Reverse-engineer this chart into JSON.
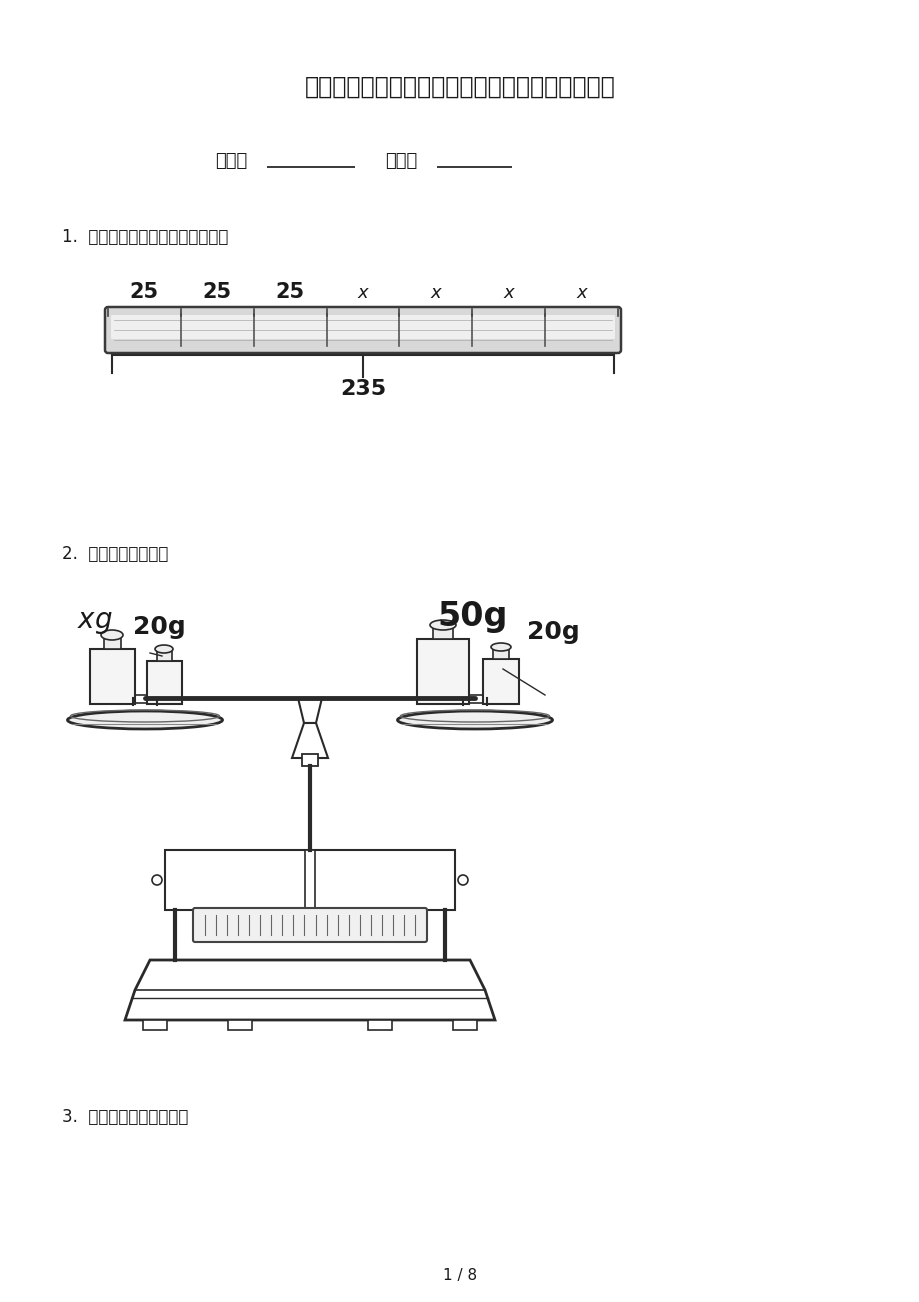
{
  "title": "五年级冀教版数学上册看图列方程假期专项练习题",
  "class_label": "班级：",
  "name_label": "姓名：",
  "q1_text": "1.  看图列方程，并求出方程的解。",
  "q2_text": "2.  看图列方程计算。",
  "q3_text": "3.  看图列方程，并解答。",
  "page_text": "1 / 8",
  "bar_labels": [
    "25",
    "25",
    "25",
    "x",
    "x",
    "x",
    "x"
  ],
  "bar_total": "235",
  "bg_color": "#ffffff",
  "text_color": "#1a1a1a",
  "line_color": "#2a2a2a"
}
